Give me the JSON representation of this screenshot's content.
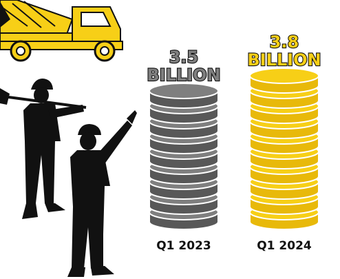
{
  "chart_data": {
    "type": "bar",
    "title": "",
    "xlabel": "",
    "ylabel": "",
    "categories": [
      "Q1 2023",
      "Q1 2024"
    ],
    "values": [
      3.5,
      3.8
    ],
    "value_labels": [
      {
        "number": "3.5",
        "unit": "BILLION"
      },
      {
        "number": "3.8",
        "unit": "BILLION"
      }
    ],
    "colors": [
      "#7f7f7f",
      "#f7cf17"
    ],
    "legend": "none",
    "grid": false
  },
  "palette": {
    "truck": "#f7cf17",
    "coin_gray_rim": "#585858",
    "coin_gold_rim": "#e8b90a",
    "silhouette": "#111111"
  },
  "icons": [
    "cement-truck-icon",
    "worker-with-shovel-icon",
    "worker-pointing-icon"
  ]
}
